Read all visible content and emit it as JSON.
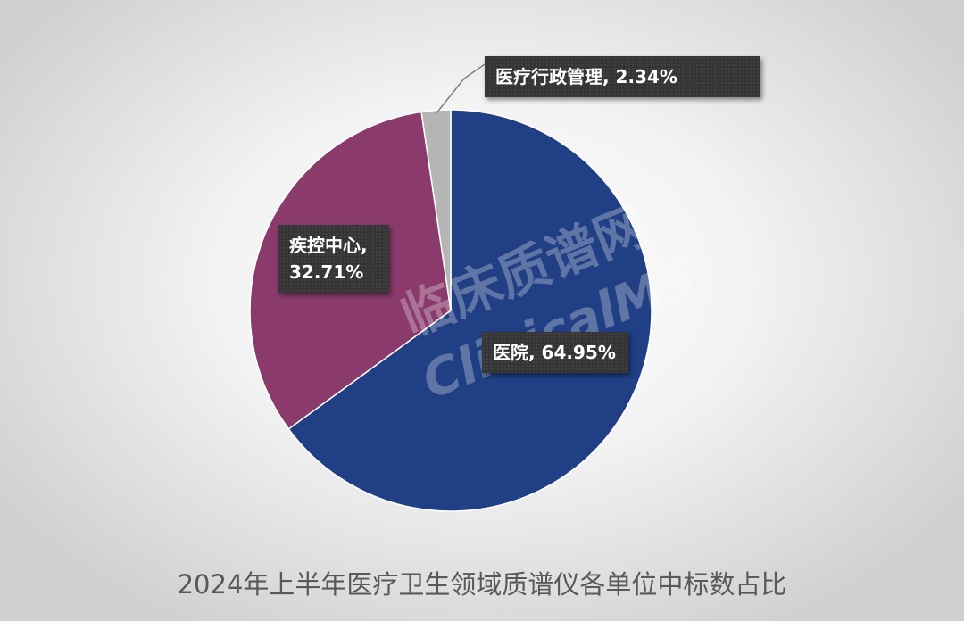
{
  "chart_data": {
    "type": "pie",
    "title": "2024年上半年医疗卫生领域质谱仪各单位中标数占比",
    "values": [
      64.95,
      32.71,
      2.34
    ],
    "value_labels": [
      "医院, 64.95%",
      "疾控中心, 32.71%",
      "医疗行政管理, 2.34%"
    ],
    "colors": [
      "#213f84",
      "#8a3b6c",
      "#b5b5b5"
    ],
    "watermark": [
      "临床质谱网",
      "ClinicalMS"
    ]
  }
}
